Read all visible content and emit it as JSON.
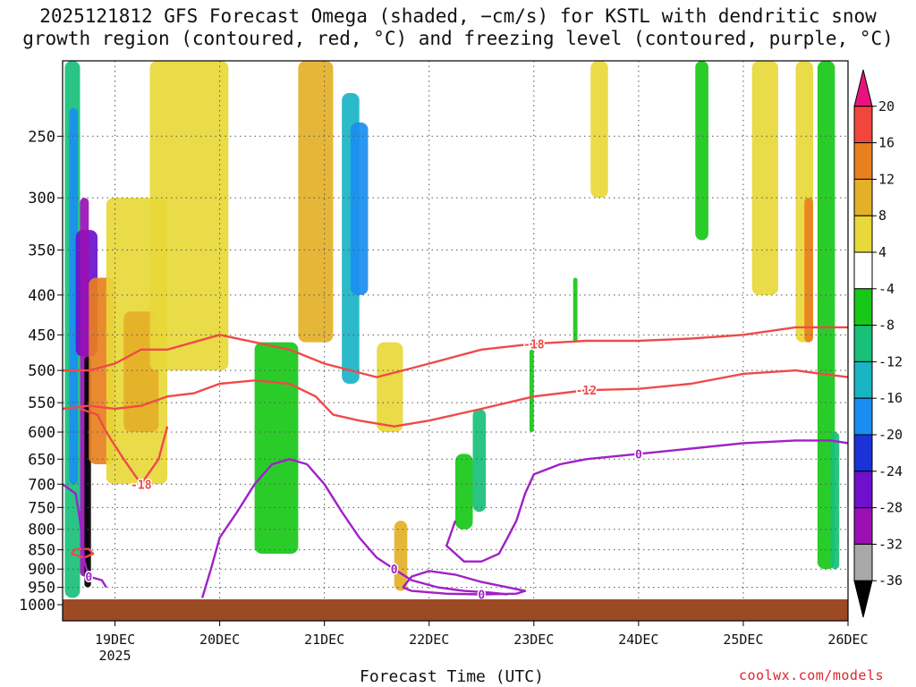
{
  "title_line1": "2025121812 GFS Forecast Omega (shaded, −cm/s) for KSTL with dendritic snow",
  "title_line2": "growth region (contoured, red, °C) and freezing level (contoured, purple, °C)",
  "x_axis_title": "Forecast Time (UTC)",
  "credit": "coolwx.com/models",
  "colors": {
    "terrain": "#9c4a24",
    "dgz_contour": "#ef4a4a",
    "freezing_contour": "#a020c8",
    "grid": "#555555"
  },
  "chart_data": {
    "type": "heatmap",
    "title": "2025121812 GFS Forecast Omega (shaded, −cm/s) for KSTL with dendritic snow growth region (contoured, red, °C) and freezing level (contoured, purple, °C)",
    "xlabel": "Forecast Time (UTC)",
    "ylabel": "",
    "y_scale": "log-pressure (hPa, inverted)",
    "ylim": [
      1000,
      200
    ],
    "xlim": [
      "2025-12-18T12",
      "2025-12-26T00"
    ],
    "x_ticks": [
      {
        "hours": 12,
        "label": "19DEC",
        "sublabel": "2025"
      },
      {
        "hours": 36,
        "label": "20DEC",
        "sublabel": ""
      },
      {
        "hours": 60,
        "label": "21DEC",
        "sublabel": ""
      },
      {
        "hours": 84,
        "label": "22DEC",
        "sublabel": ""
      },
      {
        "hours": 108,
        "label": "23DEC",
        "sublabel": ""
      },
      {
        "hours": 132,
        "label": "24DEC",
        "sublabel": ""
      },
      {
        "hours": 156,
        "label": "25DEC",
        "sublabel": ""
      },
      {
        "hours": 180,
        "label": "26DEC",
        "sublabel": ""
      }
    ],
    "y_ticks": [
      250,
      300,
      350,
      400,
      450,
      500,
      550,
      600,
      650,
      700,
      750,
      800,
      850,
      900,
      950,
      1000
    ],
    "grid": true,
    "colorbar": {
      "labels": [
        20,
        16,
        12,
        8,
        4,
        -4,
        -8,
        -12,
        -16,
        -20,
        -24,
        -28,
        -32,
        -36
      ],
      "bins": [
        {
          "color": "#e8147e"
        },
        {
          "color": "#f0463c"
        },
        {
          "color": "#e8801e"
        },
        {
          "color": "#e4b028"
        },
        {
          "color": "#e8d83a"
        },
        {
          "color": "#ffffff"
        },
        {
          "color": "#18c818"
        },
        {
          "color": "#18c07a"
        },
        {
          "color": "#18b4c4"
        },
        {
          "color": "#1a8ef0"
        },
        {
          "color": "#1a32d8"
        },
        {
          "color": "#6e10cc"
        },
        {
          "color": "#9a10b4"
        },
        {
          "color": "#a8a8a8"
        },
        {
          "color": "#000000"
        }
      ]
    },
    "omega_regions": [
      {
        "t0": 0.5,
        "t1": 4,
        "p_top": 200,
        "p_bot": 980,
        "level": "ascent-strong",
        "color": "#18c07a"
      },
      {
        "t0": 1.5,
        "t1": 3.5,
        "p_top": 230,
        "p_bot": 700,
        "level": "ascent-very-strong",
        "color": "#1a8ef0"
      },
      {
        "t0": 3,
        "t1": 8,
        "p_top": 330,
        "p_bot": 480,
        "level": "ascent-extreme",
        "color": "#6e10cc"
      },
      {
        "t0": 4,
        "t1": 6,
        "p_top": 300,
        "p_bot": 920,
        "level": "ascent-extreme",
        "color": "#9a10b4"
      },
      {
        "t0": 5,
        "t1": 6.5,
        "p_top": 480,
        "p_bot": 950,
        "level": "ascent-maximum",
        "color": "#000000"
      },
      {
        "t0": 6,
        "t1": 12,
        "p_top": 380,
        "p_bot": 660,
        "level": "descent-moderate",
        "color": "#e8801e"
      },
      {
        "t0": 10,
        "t1": 24,
        "p_top": 300,
        "p_bot": 700,
        "level": "descent-weak",
        "color": "#e8d83a"
      },
      {
        "t0": 14,
        "t1": 22,
        "p_top": 420,
        "p_bot": 600,
        "level": "descent-moderate",
        "color": "#e4b028"
      },
      {
        "t0": 20,
        "t1": 38,
        "p_top": 200,
        "p_bot": 500,
        "level": "descent-weak",
        "color": "#e8d83a"
      },
      {
        "t0": 44,
        "t1": 54,
        "p_top": 460,
        "p_bot": 860,
        "level": "ascent-weak",
        "color": "#18c818"
      },
      {
        "t0": 54,
        "t1": 62,
        "p_top": 200,
        "p_bot": 460,
        "level": "descent-moderate",
        "color": "#e4b028"
      },
      {
        "t0": 64,
        "t1": 68,
        "p_top": 220,
        "p_bot": 520,
        "level": "ascent-strong",
        "color": "#18b4c4"
      },
      {
        "t0": 66,
        "t1": 70,
        "p_top": 240,
        "p_bot": 400,
        "level": "ascent-very-strong",
        "color": "#1a8ef0"
      },
      {
        "t0": 72,
        "t1": 78,
        "p_top": 460,
        "p_bot": 600,
        "level": "descent-weak",
        "color": "#e8d83a"
      },
      {
        "t0": 76,
        "t1": 79,
        "p_top": 780,
        "p_bot": 960,
        "level": "descent-moderate",
        "color": "#e4b028"
      },
      {
        "t0": 90,
        "t1": 94,
        "p_top": 640,
        "p_bot": 800,
        "level": "ascent-weak",
        "color": "#18c818"
      },
      {
        "t0": 94,
        "t1": 97,
        "p_top": 560,
        "p_bot": 760,
        "level": "ascent-moderate",
        "color": "#18c07a"
      },
      {
        "t0": 107,
        "t1": 108,
        "p_top": 470,
        "p_bot": 600,
        "level": "ascent-weak",
        "color": "#18c818"
      },
      {
        "t0": 117,
        "t1": 118,
        "p_top": 380,
        "p_bot": 460,
        "level": "ascent-weak",
        "color": "#18c818"
      },
      {
        "t0": 121,
        "t1": 125,
        "p_top": 200,
        "p_bot": 300,
        "level": "descent-weak",
        "color": "#e8d83a"
      },
      {
        "t0": 145,
        "t1": 148,
        "p_top": 200,
        "p_bot": 340,
        "level": "ascent-weak",
        "color": "#18c818"
      },
      {
        "t0": 158,
        "t1": 164,
        "p_top": 200,
        "p_bot": 400,
        "level": "descent-weak",
        "color": "#e8d83a"
      },
      {
        "t0": 168,
        "t1": 172,
        "p_top": 200,
        "p_bot": 460,
        "level": "descent-weak",
        "color": "#e8d83a"
      },
      {
        "t0": 170,
        "t1": 172,
        "p_top": 300,
        "p_bot": 460,
        "level": "descent-moderate",
        "color": "#e8801e"
      },
      {
        "t0": 173,
        "t1": 177,
        "p_top": 200,
        "p_bot": 900,
        "level": "ascent-weak",
        "color": "#18c818"
      },
      {
        "t0": 176,
        "t1": 178,
        "p_top": 600,
        "p_bot": 900,
        "level": "ascent-moderate",
        "color": "#18c07a"
      }
    ],
    "dgz_contours": [
      {
        "label": "-18",
        "points": [
          [
            0,
            500
          ],
          [
            6,
            500
          ],
          [
            12,
            490
          ],
          [
            18,
            470
          ],
          [
            24,
            470
          ],
          [
            30,
            460
          ],
          [
            36,
            450
          ],
          [
            44,
            460
          ],
          [
            52,
            470
          ],
          [
            60,
            490
          ],
          [
            66,
            500
          ],
          [
            72,
            510
          ],
          [
            78,
            500
          ],
          [
            84,
            490
          ],
          [
            96,
            470
          ],
          [
            108,
            462
          ],
          [
            120,
            458
          ],
          [
            132,
            458
          ],
          [
            144,
            455
          ],
          [
            156,
            450
          ],
          [
            168,
            440
          ],
          [
            180,
            440
          ]
        ]
      },
      {
        "label": "-12",
        "points": [
          [
            0,
            560
          ],
          [
            6,
            555
          ],
          [
            12,
            560
          ],
          [
            18,
            555
          ],
          [
            24,
            540
          ],
          [
            30,
            535
          ],
          [
            36,
            520
          ],
          [
            44,
            515
          ],
          [
            52,
            520
          ],
          [
            58,
            540
          ],
          [
            62,
            570
          ],
          [
            68,
            580
          ],
          [
            76,
            590
          ],
          [
            84,
            580
          ],
          [
            96,
            560
          ],
          [
            108,
            540
          ],
          [
            120,
            530
          ],
          [
            132,
            528
          ],
          [
            144,
            520
          ],
          [
            156,
            505
          ],
          [
            168,
            500
          ],
          [
            174,
            505
          ],
          [
            180,
            510
          ]
        ]
      },
      {
        "label": "-18",
        "points": [
          [
            4,
            560
          ],
          [
            8,
            570
          ],
          [
            10,
            600
          ],
          [
            14,
            650
          ],
          [
            18,
            700
          ],
          [
            22,
            650
          ],
          [
            24,
            590
          ]
        ]
      },
      {
        "label": "",
        "points": [
          [
            2,
            860
          ],
          [
            5,
            870
          ],
          [
            7,
            860
          ],
          [
            6,
            848
          ],
          [
            3,
            848
          ],
          [
            2,
            860
          ]
        ]
      }
    ],
    "freezing_contours": [
      {
        "label": "0",
        "points": [
          [
            0,
            700
          ],
          [
            3,
            720
          ],
          [
            4,
            780
          ],
          [
            5,
            880
          ],
          [
            6,
            920
          ],
          [
            9,
            930
          ],
          [
            10,
            950
          ]
        ]
      },
      {
        "label": "0",
        "points": [
          [
            32,
            980
          ],
          [
            34,
            900
          ],
          [
            36,
            820
          ],
          [
            40,
            760
          ],
          [
            44,
            700
          ],
          [
            48,
            660
          ],
          [
            52,
            650
          ],
          [
            56,
            660
          ],
          [
            60,
            700
          ],
          [
            64,
            760
          ],
          [
            68,
            820
          ],
          [
            72,
            870
          ],
          [
            76,
            900
          ],
          [
            80,
            930
          ],
          [
            86,
            950
          ],
          [
            92,
            960
          ],
          [
            98,
            965
          ],
          [
            102,
            970
          ]
        ]
      },
      {
        "label": "0",
        "points": [
          [
            90,
            780
          ],
          [
            88,
            840
          ],
          [
            92,
            880
          ],
          [
            96,
            880
          ],
          [
            100,
            860
          ],
          [
            102,
            820
          ],
          [
            104,
            780
          ],
          [
            106,
            720
          ],
          [
            108,
            680
          ],
          [
            114,
            660
          ],
          [
            120,
            650
          ],
          [
            132,
            640
          ],
          [
            144,
            630
          ],
          [
            156,
            620
          ],
          [
            168,
            615
          ],
          [
            176,
            615
          ],
          [
            180,
            620
          ]
        ]
      },
      {
        "label": "0",
        "points": [
          [
            78,
            950
          ],
          [
            80,
            920
          ],
          [
            84,
            905
          ],
          [
            90,
            915
          ],
          [
            96,
            935
          ],
          [
            102,
            950
          ],
          [
            106,
            960
          ],
          [
            104,
            968
          ],
          [
            96,
            970
          ],
          [
            88,
            968
          ],
          [
            80,
            960
          ],
          [
            78,
            950
          ]
        ]
      }
    ]
  }
}
